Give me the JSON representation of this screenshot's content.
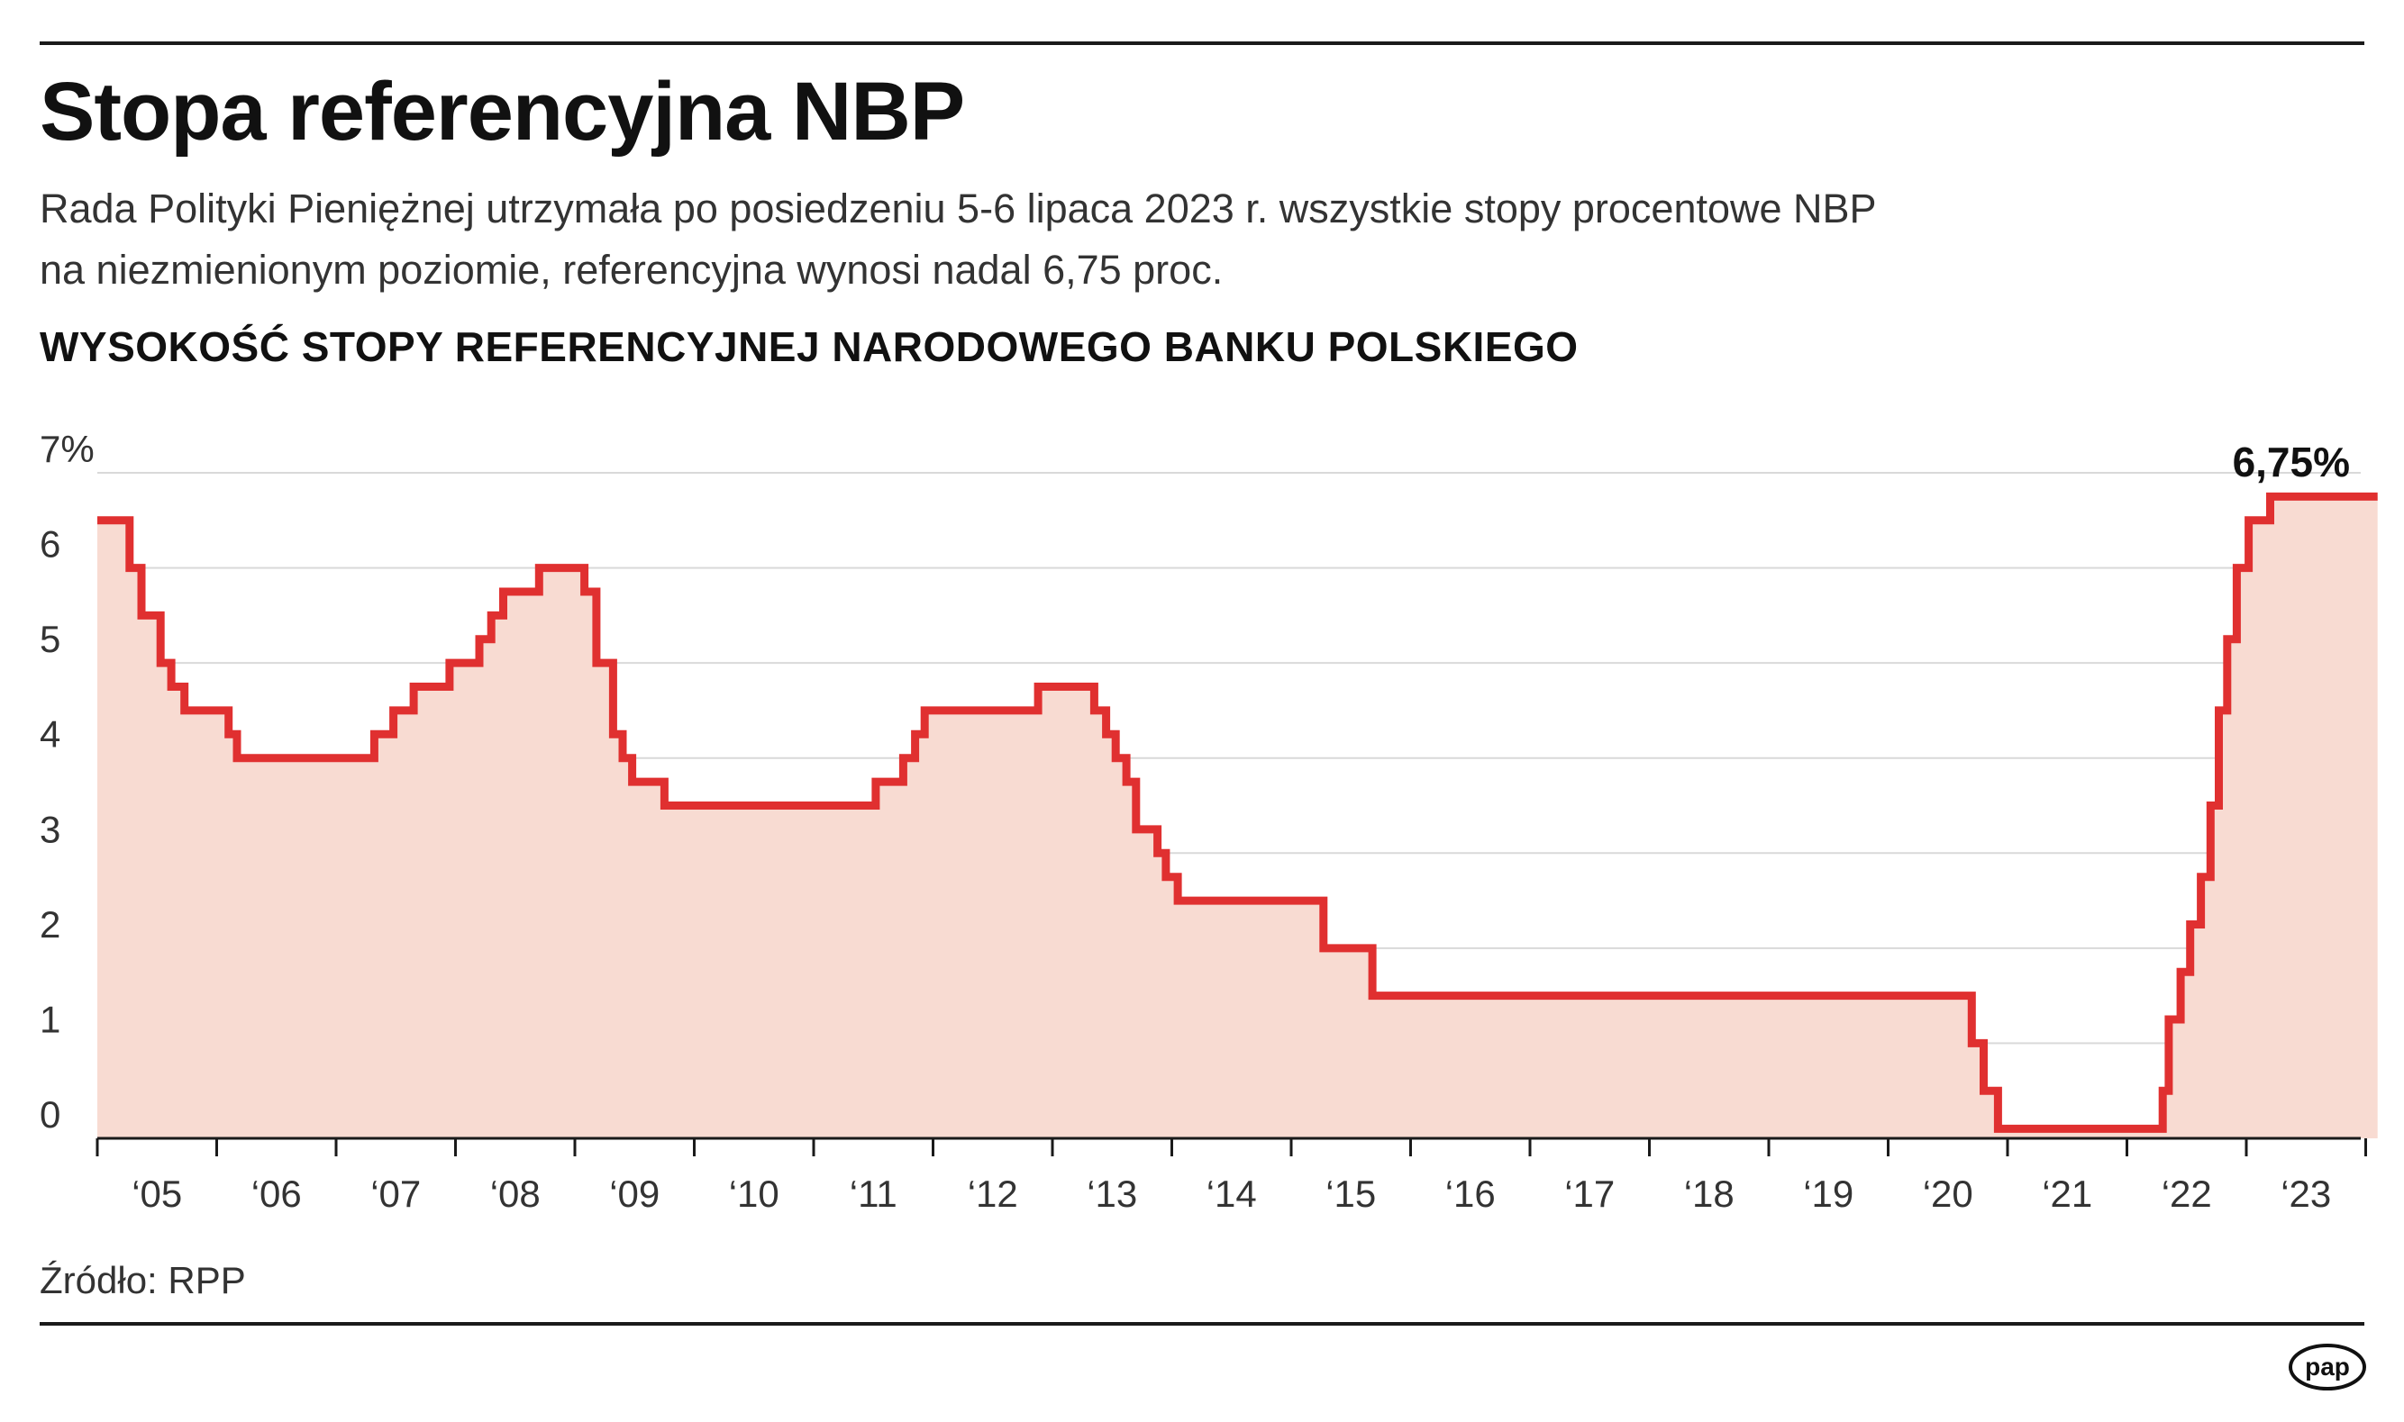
{
  "header": {
    "title": "Stopa referencyjna NBP",
    "subtitle_line1": "Rada Polityki Pieniężnej utrzymała po posiedzeniu 5-6 lipaca 2023 r. wszystkie stopy procentowe NBP",
    "subtitle_line2": "na niezmienionym poziomie, referencyjna wynosi nadal 6,75 proc.",
    "chart_heading": "WYSOKOŚĆ STOPY REFERENCYJNEJ NARODOWEGO BANKU POLSKIEGO"
  },
  "footer": {
    "source": "Źródło: RPP",
    "logo_text": "pap"
  },
  "colors": {
    "line": "#e03030",
    "fill": "#f8dbd2",
    "grid": "#d9d9d9",
    "axis": "#1a1a1a"
  },
  "chart_data": {
    "type": "area",
    "title": "WYSOKOŚĆ STOPY REFERENCYJNEJ NARODOWEGO BANKU POLSKIEGO",
    "xlabel": "",
    "ylabel": "",
    "ylim": [
      0,
      7
    ],
    "xlim": [
      2004.5,
      2023.75
    ],
    "grid": true,
    "step": true,
    "y_tick_labels": [
      "0",
      "1",
      "2",
      "3",
      "4",
      "5",
      "6",
      "7%"
    ],
    "y_ticks": [
      0,
      1,
      2,
      3,
      4,
      5,
      6,
      7
    ],
    "x_tick_labels": [
      "‘05",
      "‘06",
      "‘07",
      "‘08",
      "‘09",
      "‘10",
      "‘11",
      "‘12",
      "‘13",
      "‘14",
      "‘15",
      "‘16",
      "‘17",
      "‘18",
      "‘19",
      "‘20",
      "‘21",
      "‘22",
      "‘23"
    ],
    "annotation": "6,75%",
    "series": [
      {
        "points": [
          [
            2004.5,
            6.5
          ],
          [
            2004.77,
            6.0
          ],
          [
            2004.87,
            5.5
          ],
          [
            2005.03,
            5.0
          ],
          [
            2005.12,
            4.75
          ],
          [
            2005.23,
            4.5
          ],
          [
            2005.6,
            4.25
          ],
          [
            2005.67,
            4.0
          ],
          [
            2006.82,
            4.25
          ],
          [
            2006.98,
            4.5
          ],
          [
            2007.15,
            4.75
          ],
          [
            2007.45,
            5.0
          ],
          [
            2007.7,
            5.25
          ],
          [
            2007.8,
            5.5
          ],
          [
            2007.9,
            5.75
          ],
          [
            2008.2,
            6.0
          ],
          [
            2008.58,
            5.75
          ],
          [
            2008.68,
            5.0
          ],
          [
            2008.82,
            4.25
          ],
          [
            2008.9,
            4.0
          ],
          [
            2008.98,
            3.75
          ],
          [
            2009.25,
            3.5
          ],
          [
            2011.02,
            3.75
          ],
          [
            2011.25,
            4.0
          ],
          [
            2011.35,
            4.25
          ],
          [
            2011.43,
            4.5
          ],
          [
            2012.38,
            4.75
          ],
          [
            2012.85,
            4.5
          ],
          [
            2012.95,
            4.25
          ],
          [
            2013.03,
            4.0
          ],
          [
            2013.12,
            3.75
          ],
          [
            2013.2,
            3.25
          ],
          [
            2013.38,
            3.0
          ],
          [
            2013.45,
            2.75
          ],
          [
            2013.55,
            2.5
          ],
          [
            2014.77,
            2.0
          ],
          [
            2015.18,
            1.5
          ],
          [
            2020.2,
            1.0
          ],
          [
            2020.3,
            0.5
          ],
          [
            2020.42,
            0.1
          ],
          [
            2021.8,
            0.5
          ],
          [
            2021.85,
            1.25
          ],
          [
            2021.95,
            1.75
          ],
          [
            2022.03,
            2.25
          ],
          [
            2022.12,
            2.75
          ],
          [
            2022.2,
            3.5
          ],
          [
            2022.27,
            4.5
          ],
          [
            2022.34,
            5.25
          ],
          [
            2022.42,
            6.0
          ],
          [
            2022.52,
            6.5
          ],
          [
            2022.7,
            6.75
          ],
          [
            2023.6,
            6.75
          ]
        ]
      }
    ]
  }
}
